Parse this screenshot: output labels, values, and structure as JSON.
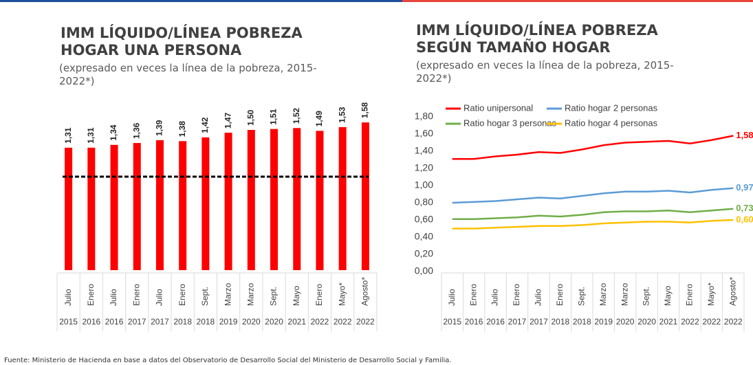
{
  "chart_data": [
    {
      "type": "bar",
      "title": [
        "IMM LÍQUIDO/LÍNEA POBREZA",
        "HOGAR UNA PERSONA"
      ],
      "subtitle": "(expresado en veces la línea de la pobreza, 2015-2022*)",
      "categories": [
        "Julio",
        "Enero",
        "Julio",
        "Enero",
        "Julio",
        "Enero",
        "Sept.",
        "Marzo",
        "Marzo",
        "Sept.",
        "Mayo",
        "Enero",
        "Mayo*",
        "Agosto*"
      ],
      "years": [
        "2015",
        "2016",
        "2016",
        "2017",
        "2017",
        "2018",
        "2018",
        "2019",
        "2020",
        "2020",
        "2021",
        "2022",
        "2022",
        "2022"
      ],
      "values": [
        1.31,
        1.31,
        1.34,
        1.36,
        1.39,
        1.38,
        1.42,
        1.47,
        1.5,
        1.51,
        1.52,
        1.49,
        1.53,
        1.58
      ],
      "value_labels": [
        "1,31",
        "1,31",
        "1,34",
        "1,36",
        "1,39",
        "1,38",
        "1,42",
        "1,47",
        "1,50",
        "1,51",
        "1,52",
        "1,49",
        "1,53",
        "1,58"
      ],
      "color": "#ff0000",
      "reference_line": 1
    },
    {
      "type": "line",
      "title": [
        "IMM LÍQUIDO/LÍNEA POBREZA",
        "SEGÚN TAMAÑO HOGAR"
      ],
      "subtitle": "(expresado en veces la línea de la pobreza, 2015-2022*)",
      "categories": [
        "Julio",
        "Enero",
        "Julio",
        "Enero",
        "Julio",
        "Enero",
        "Sept.",
        "Marzo",
        "Marzo",
        "Sept.",
        "Mayo",
        "Enero",
        "Mayo*",
        "Agosto*"
      ],
      "years": [
        "2015",
        "2016",
        "2016",
        "2017",
        "2017",
        "2018",
        "2018",
        "2019",
        "2020",
        "2020",
        "2021",
        "2022",
        "2022",
        "2022"
      ],
      "ylim": [
        0,
        1.8
      ],
      "yticks": [
        {
          "value": 0,
          "label": "0,00"
        },
        {
          "value": 0.2,
          "label": "0,20"
        },
        {
          "value": 0.4,
          "label": "0,40"
        },
        {
          "value": 0.6,
          "label": "0,60"
        },
        {
          "value": 0.8,
          "label": "0,80"
        },
        {
          "value": 1,
          "label": "1,00"
        },
        {
          "value": 1.2,
          "label": "1,20"
        },
        {
          "value": 1.4,
          "label": "1,40"
        },
        {
          "value": 1.6,
          "label": "1,60"
        },
        {
          "value": 1.8,
          "label": "1,80"
        }
      ],
      "series": [
        {
          "name": "Ratio unipersonal",
          "color": "#ff0000",
          "values": [
            1.31,
            1.31,
            1.34,
            1.36,
            1.39,
            1.38,
            1.42,
            1.47,
            1.5,
            1.51,
            1.52,
            1.49,
            1.53,
            1.58
          ],
          "end_label": "1,58"
        },
        {
          "name": "Ratio hogar 2 personas",
          "color": "#5b9bd5",
          "values": [
            0.8,
            0.81,
            0.82,
            0.84,
            0.86,
            0.85,
            0.88,
            0.91,
            0.93,
            0.93,
            0.94,
            0.92,
            0.95,
            0.97
          ],
          "end_label": "0,97"
        },
        {
          "name": "Ratio hogar 3 personas",
          "color": "#70ad47",
          "values": [
            0.61,
            0.61,
            0.62,
            0.63,
            0.65,
            0.64,
            0.66,
            0.69,
            0.7,
            0.7,
            0.71,
            0.69,
            0.71,
            0.73
          ],
          "end_label": "0,73"
        },
        {
          "name": "Ratio hogar 4 personas",
          "color": "#ffc000",
          "values": [
            0.5,
            0.5,
            0.51,
            0.52,
            0.53,
            0.53,
            0.54,
            0.56,
            0.57,
            0.58,
            0.58,
            0.57,
            0.59,
            0.6
          ],
          "end_label": "0,60"
        }
      ]
    }
  ],
  "source": "Fuente: Ministerio de Hacienda en base a datos del Observatorio de Desarrollo Social del Ministerio de Desarrollo Social y Familia."
}
